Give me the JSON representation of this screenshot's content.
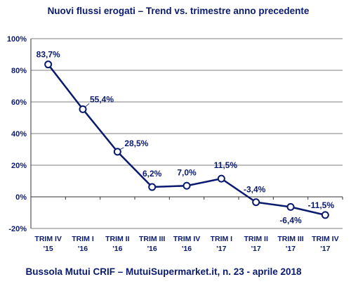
{
  "chart_data": {
    "type": "line",
    "title": "Nuovi flussi erogati – Trend vs. trimestre anno precedente",
    "footer": "Bussola Mutui CRIF – MutuiSupermarket.it, n. 23 - aprile 2018",
    "xlabel": "",
    "ylabel": "",
    "ylim": [
      -20,
      100
    ],
    "yticks": [
      -20,
      0,
      20,
      40,
      60,
      80,
      100
    ],
    "ytick_labels": [
      "-20%",
      "0%",
      "20%",
      "40%",
      "60%",
      "80%",
      "100%"
    ],
    "grid": true,
    "categories": [
      [
        "TRIM IV",
        "'15"
      ],
      [
        "TRIM I",
        "'16"
      ],
      [
        "TRIM II",
        "'16"
      ],
      [
        "TRIM III",
        "'16"
      ],
      [
        "TRIM IV",
        "'16"
      ],
      [
        "TRIM I",
        "'17"
      ],
      [
        "TRIM II",
        "'17"
      ],
      [
        "TRIM III",
        "'17"
      ],
      [
        "TRIM IV",
        "'17"
      ]
    ],
    "series": [
      {
        "values": [
          83.7,
          55.4,
          28.5,
          6.2,
          7.0,
          11.5,
          -3.4,
          -6.4,
          -11.5
        ],
        "labels": [
          "83,7%",
          "55,4%",
          "28,5%",
          "6,2%",
          "7,0%",
          "11,5%",
          "-3,4%",
          "-6,4%",
          "-11,5%"
        ]
      }
    ],
    "colors": {
      "line": "#0a1a6e",
      "text": "#0a1a6e",
      "grid": "#555555",
      "marker_fill": "#ffffff"
    }
  }
}
